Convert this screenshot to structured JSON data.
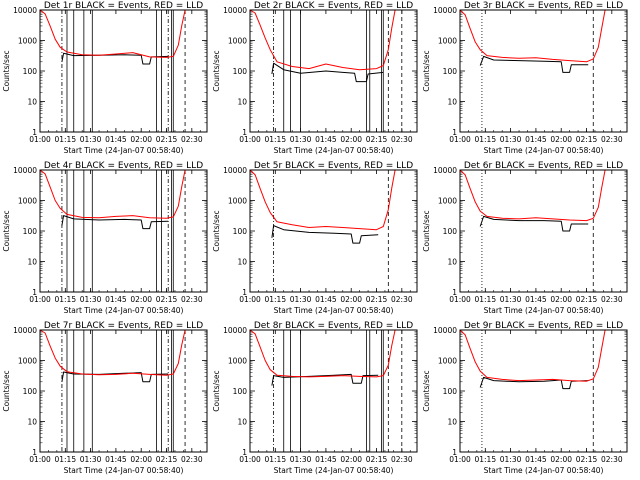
{
  "colors": {
    "events": "#000000",
    "lld": "#ff0000",
    "background": "#ffffff"
  },
  "chart_data": [
    {
      "type": "line",
      "title": "Det 1r BLACK = Events, RED = LLD",
      "xlabel": "Start Time (24-Jan-07 00:58:40)",
      "ylabel": "Counts/sec",
      "xlim": [
        "01:00",
        "02:39"
      ],
      "ylim": [
        1,
        10000
      ],
      "yscale": "log",
      "x_ticks": [
        "01:00",
        "01:15",
        "01:30",
        "01:45",
        "02:00",
        "02:15",
        "02:30"
      ],
      "y_ticks": [
        "1",
        "10",
        "100",
        "1000",
        "10000"
      ],
      "vlines": {
        "solid": [
          "01:16",
          "01:20",
          "01:26",
          "01:31",
          "02:09",
          "02:12",
          "02:18",
          "02:19"
        ],
        "dashdot": [
          "01:13",
          "02:16"
        ],
        "dotted": [],
        "dashed": [
          "02:26"
        ]
      },
      "series": [
        {
          "name": "Events",
          "x": [
            "01:13",
            "01:14",
            "01:20",
            "01:35",
            "01:50",
            "02:00",
            "02:01",
            "02:05",
            "02:06",
            "02:16"
          ],
          "y": [
            200,
            380,
            320,
            330,
            340,
            330,
            170,
            170,
            290,
            300
          ]
        },
        {
          "name": "LLD",
          "x": [
            "01:00",
            "01:03",
            "01:06",
            "01:09",
            "01:12",
            "01:16",
            "01:25",
            "01:35",
            "01:45",
            "01:55",
            "02:05",
            "02:15",
            "02:19",
            "02:22",
            "02:24",
            "02:26"
          ],
          "y": [
            10000,
            7500,
            3000,
            1100,
            600,
            420,
            340,
            330,
            360,
            400,
            290,
            280,
            300,
            700,
            3000,
            10000
          ]
        }
      ]
    },
    {
      "type": "line",
      "title": "Det 2r BLACK = Events, RED = LLD",
      "xlabel": "Start Time (24-Jan-07 00:58:40)",
      "ylabel": "Counts/sec",
      "xlim": [
        "01:00",
        "02:39"
      ],
      "ylim": [
        1,
        10000
      ],
      "yscale": "log",
      "x_ticks": [
        "01:00",
        "01:15",
        "01:30",
        "01:45",
        "02:00",
        "02:15",
        "02:30"
      ],
      "y_ticks": [
        "1",
        "10",
        "100",
        "1000",
        "10000"
      ],
      "vlines": {
        "solid": [
          "01:20",
          "01:24",
          "01:30",
          "02:09",
          "02:11",
          "02:18",
          "02:19"
        ],
        "dashdot": [
          "01:14"
        ],
        "dotted": [],
        "dashed": [
          "02:22",
          "02:30"
        ]
      },
      "series": [
        {
          "name": "Events",
          "x": [
            "01:13",
            "01:14",
            "01:20",
            "01:30",
            "01:45",
            "01:55",
            "02:02",
            "02:03",
            "02:09",
            "02:10",
            "02:19"
          ],
          "y": [
            80,
            180,
            110,
            85,
            100,
            90,
            85,
            45,
            45,
            80,
            90
          ]
        },
        {
          "name": "LLD",
          "x": [
            "01:00",
            "01:03",
            "01:06",
            "01:09",
            "01:12",
            "01:16",
            "01:25",
            "01:35",
            "01:45",
            "01:55",
            "02:05",
            "02:15",
            "02:19",
            "02:22",
            "02:24",
            "02:26"
          ],
          "y": [
            10000,
            8000,
            3200,
            1200,
            500,
            200,
            140,
            120,
            170,
            130,
            110,
            120,
            150,
            500,
            2500,
            10000
          ]
        }
      ]
    },
    {
      "type": "line",
      "title": "Det 3r BLACK = Events, RED = LLD",
      "xlabel": "Start Time (24-Jan-07 00:58:40)",
      "ylabel": "Counts/sec",
      "xlim": [
        "01:00",
        "02:39"
      ],
      "ylim": [
        1,
        10000
      ],
      "yscale": "log",
      "x_ticks": [
        "01:00",
        "01:15",
        "01:30",
        "01:45",
        "02:00",
        "02:15",
        "02:30"
      ],
      "y_ticks": [
        "1",
        "10",
        "100",
        "1000",
        "10000"
      ],
      "vlines": {
        "solid": [],
        "dashdot": [],
        "dotted": [
          "01:13"
        ],
        "dashed": [
          "02:19"
        ]
      },
      "series": [
        {
          "name": "Events",
          "x": [
            "01:12",
            "01:14",
            "01:20",
            "01:35",
            "01:50",
            "02:00",
            "02:01",
            "02:05",
            "02:06",
            "02:16"
          ],
          "y": [
            150,
            300,
            230,
            220,
            210,
            200,
            90,
            90,
            160,
            160
          ]
        },
        {
          "name": "LLD",
          "x": [
            "01:00",
            "01:03",
            "01:06",
            "01:09",
            "01:12",
            "01:16",
            "01:25",
            "01:35",
            "01:45",
            "01:55",
            "02:05",
            "02:15",
            "02:19",
            "02:22",
            "02:24",
            "02:26"
          ],
          "y": [
            10000,
            7000,
            2500,
            900,
            500,
            320,
            280,
            260,
            270,
            240,
            220,
            200,
            250,
            600,
            2500,
            10000
          ]
        }
      ]
    },
    {
      "type": "line",
      "title": "Det 4r BLACK = Events, RED = LLD",
      "xlabel": "Start Time (24-Jan-07 00:58:40)",
      "ylabel": "Counts/sec",
      "xlim": [
        "01:00",
        "02:39"
      ],
      "ylim": [
        1,
        10000
      ],
      "yscale": "log",
      "x_ticks": [
        "01:00",
        "01:15",
        "01:30",
        "01:45",
        "02:00",
        "02:15",
        "02:30"
      ],
      "y_ticks": [
        "1",
        "10",
        "100",
        "1000",
        "10000"
      ],
      "vlines": {
        "solid": [
          "01:16",
          "01:20",
          "01:26",
          "01:31",
          "02:09",
          "02:12",
          "02:18",
          "02:19"
        ],
        "dashdot": [
          "01:13",
          "02:16"
        ],
        "dotted": [],
        "dashed": [
          "02:26"
        ]
      },
      "series": [
        {
          "name": "Events",
          "x": [
            "01:13",
            "01:14",
            "01:20",
            "01:35",
            "01:50",
            "02:00",
            "02:01",
            "02:05",
            "02:06",
            "02:16"
          ],
          "y": [
            150,
            320,
            250,
            230,
            240,
            230,
            120,
            120,
            200,
            210
          ]
        },
        {
          "name": "LLD",
          "x": [
            "01:00",
            "01:03",
            "01:06",
            "01:09",
            "01:12",
            "01:16",
            "01:25",
            "01:35",
            "01:45",
            "01:55",
            "02:05",
            "02:15",
            "02:19",
            "02:22",
            "02:24",
            "02:26"
          ],
          "y": [
            10000,
            7500,
            2800,
            1000,
            550,
            350,
            280,
            270,
            300,
            320,
            270,
            260,
            290,
            650,
            2800,
            10000
          ]
        }
      ]
    },
    {
      "type": "line",
      "title": "Det 5r BLACK = Events, RED = LLD",
      "xlabel": "Start Time (24-Jan-07 00:58:40)",
      "ylabel": "Counts/sec",
      "xlim": [
        "01:00",
        "02:39"
      ],
      "ylim": [
        1,
        10000
      ],
      "yscale": "log",
      "x_ticks": [
        "01:00",
        "01:15",
        "01:30",
        "01:45",
        "02:00",
        "02:15",
        "02:30"
      ],
      "y_ticks": [
        "1",
        "10",
        "100",
        "1000",
        "10000"
      ],
      "vlines": {
        "solid": [],
        "dashdot": [
          "01:14"
        ],
        "dotted": [],
        "dashed": [
          "02:22"
        ]
      },
      "series": [
        {
          "name": "Events",
          "x": [
            "01:13",
            "01:14",
            "01:20",
            "01:35",
            "01:50",
            "02:00",
            "02:01",
            "02:05",
            "02:06",
            "02:16"
          ],
          "y": [
            60,
            150,
            110,
            90,
            85,
            80,
            40,
            40,
            70,
            75
          ]
        },
        {
          "name": "LLD",
          "x": [
            "01:00",
            "01:03",
            "01:06",
            "01:09",
            "01:12",
            "01:16",
            "01:25",
            "01:35",
            "01:45",
            "01:55",
            "02:05",
            "02:15",
            "02:19",
            "02:22",
            "02:24",
            "02:26"
          ],
          "y": [
            10000,
            7000,
            2500,
            900,
            400,
            200,
            160,
            130,
            140,
            130,
            120,
            110,
            140,
            500,
            2500,
            10000
          ]
        }
      ]
    },
    {
      "type": "line",
      "title": "Det 6r BLACK = Events, RED = LLD",
      "xlabel": "Start Time (24-Jan-07 00:58:40)",
      "ylabel": "Counts/sec",
      "xlim": [
        "01:00",
        "02:39"
      ],
      "ylim": [
        1,
        10000
      ],
      "yscale": "log",
      "x_ticks": [
        "01:00",
        "01:15",
        "01:30",
        "01:45",
        "02:00",
        "02:15",
        "02:30"
      ],
      "y_ticks": [
        "1",
        "10",
        "100",
        "1000",
        "10000"
      ],
      "vlines": {
        "solid": [],
        "dashdot": [],
        "dotted": [
          "01:13"
        ],
        "dashed": [
          "02:19"
        ]
      },
      "series": [
        {
          "name": "Events",
          "x": [
            "01:12",
            "01:14",
            "01:20",
            "01:35",
            "01:50",
            "02:00",
            "02:01",
            "02:05",
            "02:06",
            "02:16"
          ],
          "y": [
            140,
            300,
            240,
            220,
            220,
            210,
            100,
            100,
            170,
            170
          ]
        },
        {
          "name": "LLD",
          "x": [
            "01:00",
            "01:03",
            "01:06",
            "01:09",
            "01:12",
            "01:16",
            "01:25",
            "01:35",
            "01:45",
            "01:55",
            "02:05",
            "02:15",
            "02:19",
            "02:22",
            "02:24",
            "02:26"
          ],
          "y": [
            10000,
            7000,
            2500,
            900,
            450,
            300,
            260,
            250,
            270,
            250,
            230,
            220,
            260,
            600,
            2600,
            10000
          ]
        }
      ]
    },
    {
      "type": "line",
      "title": "Det 7r BLACK = Events, RED = LLD",
      "xlabel": "Start Time (24-Jan-07 00:58:40)",
      "ylabel": "Counts/sec",
      "xlim": [
        "01:00",
        "02:39"
      ],
      "ylim": [
        1,
        10000
      ],
      "yscale": "log",
      "x_ticks": [
        "01:00",
        "01:15",
        "01:30",
        "01:45",
        "02:00",
        "02:15",
        "02:30"
      ],
      "y_ticks": [
        "1",
        "10",
        "100",
        "1000",
        "10000"
      ],
      "vlines": {
        "solid": [
          "01:16",
          "01:20",
          "01:26",
          "01:31",
          "02:09",
          "02:12",
          "02:18",
          "02:19"
        ],
        "dashdot": [
          "01:13",
          "02:16"
        ],
        "dotted": [],
        "dashed": [
          "02:26"
        ]
      },
      "series": [
        {
          "name": "Events",
          "x": [
            "01:13",
            "01:14",
            "01:20",
            "01:35",
            "01:50",
            "02:00",
            "02:01",
            "02:05",
            "02:06",
            "02:16"
          ],
          "y": [
            200,
            420,
            360,
            350,
            380,
            400,
            200,
            200,
            350,
            360
          ]
        },
        {
          "name": "LLD",
          "x": [
            "01:00",
            "01:03",
            "01:06",
            "01:09",
            "01:12",
            "01:16",
            "01:25",
            "01:35",
            "01:45",
            "01:55",
            "02:05",
            "02:15",
            "02:19",
            "02:22",
            "02:24",
            "02:26"
          ],
          "y": [
            10000,
            8000,
            3000,
            1200,
            650,
            430,
            360,
            340,
            350,
            380,
            350,
            330,
            360,
            800,
            3200,
            10000
          ]
        }
      ]
    },
    {
      "type": "line",
      "title": "Det 8r BLACK = Events, RED = LLD",
      "xlabel": "Start Time (24-Jan-07 00:58:40)",
      "ylabel": "Counts/sec",
      "xlim": [
        "01:00",
        "02:39"
      ],
      "ylim": [
        1,
        10000
      ],
      "yscale": "log",
      "x_ticks": [
        "01:00",
        "01:15",
        "01:30",
        "01:45",
        "02:00",
        "02:15",
        "02:30"
      ],
      "y_ticks": [
        "1",
        "10",
        "100",
        "1000",
        "10000"
      ],
      "vlines": {
        "solid": [
          "01:20",
          "01:24",
          "01:30",
          "02:09",
          "02:11",
          "02:18",
          "02:19"
        ],
        "dashdot": [
          "01:14"
        ],
        "dotted": [],
        "dashed": [
          "02:22",
          "02:30"
        ]
      },
      "series": [
        {
          "name": "Events",
          "x": [
            "01:13",
            "01:14",
            "01:20",
            "01:35",
            "01:50",
            "02:00",
            "02:01",
            "02:06",
            "02:07",
            "02:16"
          ],
          "y": [
            150,
            320,
            280,
            300,
            330,
            350,
            180,
            180,
            320,
            330
          ]
        },
        {
          "name": "LLD",
          "x": [
            "01:00",
            "01:03",
            "01:06",
            "01:09",
            "01:12",
            "01:16",
            "01:25",
            "01:35",
            "01:45",
            "01:55",
            "02:05",
            "02:15",
            "02:19",
            "02:22",
            "02:24",
            "02:26"
          ],
          "y": [
            10000,
            7500,
            2800,
            1000,
            500,
            330,
            300,
            290,
            300,
            320,
            300,
            290,
            320,
            700,
            3000,
            10000
          ]
        }
      ]
    },
    {
      "type": "line",
      "title": "Det 9r BLACK = Events, RED = LLD",
      "xlabel": "Start Time (24-Jan-07 00:58:40)",
      "ylabel": "Counts/sec",
      "xlim": [
        "01:00",
        "02:39"
      ],
      "ylim": [
        1,
        10000
      ],
      "yscale": "log",
      "x_ticks": [
        "01:00",
        "01:15",
        "01:30",
        "01:45",
        "02:00",
        "02:15",
        "02:30"
      ],
      "y_ticks": [
        "1",
        "10",
        "100",
        "1000",
        "10000"
      ],
      "vlines": {
        "solid": [],
        "dashdot": [],
        "dotted": [
          "01:13"
        ],
        "dashed": [
          "02:19"
        ]
      },
      "series": [
        {
          "name": "Events",
          "x": [
            "01:12",
            "01:14",
            "01:20",
            "01:35",
            "01:50",
            "02:00",
            "02:01",
            "02:05",
            "02:06",
            "02:16"
          ],
          "y": [
            130,
            280,
            220,
            200,
            210,
            230,
            120,
            120,
            210,
            220
          ]
        },
        {
          "name": "LLD",
          "x": [
            "01:00",
            "01:03",
            "01:06",
            "01:09",
            "01:12",
            "01:16",
            "01:25",
            "01:35",
            "01:45",
            "01:55",
            "02:05",
            "02:15",
            "02:19",
            "02:22",
            "02:24",
            "02:26"
          ],
          "y": [
            10000,
            7000,
            2500,
            900,
            450,
            280,
            240,
            220,
            230,
            240,
            220,
            210,
            250,
            600,
            2500,
            10000
          ]
        }
      ]
    }
  ]
}
